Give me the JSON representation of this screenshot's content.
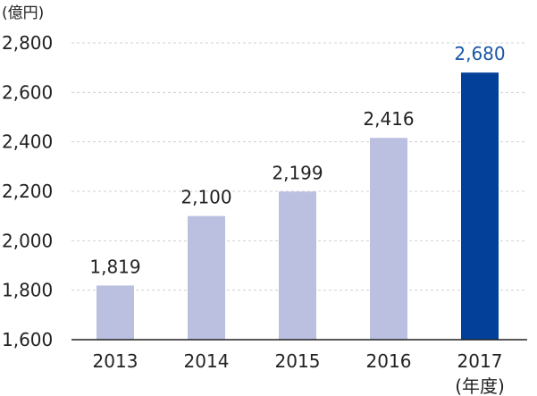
{
  "chart_data": {
    "type": "bar",
    "title": "",
    "unit_label": "(億円)",
    "xlabel": "(年度)",
    "ylabel": "",
    "ylim": [
      1600,
      2800
    ],
    "yticks": [
      1600,
      1800,
      2000,
      2200,
      2400,
      2600,
      2800
    ],
    "ytick_labels": [
      "1,600",
      "1,800",
      "2,000",
      "2,200",
      "2,400",
      "2,600",
      "2,800"
    ],
    "categories": [
      "2013",
      "2014",
      "2015",
      "2016",
      "2017"
    ],
    "values": [
      1819,
      2100,
      2199,
      2416,
      2680
    ],
    "value_labels": [
      "1,819",
      "2,100",
      "2,199",
      "2,416",
      "2,680"
    ],
    "highlight_index": 4,
    "grid": true,
    "colors": {
      "bar": "#bcc0e0",
      "highlight_bar": "#034099",
      "highlight_label": "#1a57a3",
      "grid": "#d0d0d0",
      "axis": "#222222",
      "text": "#222222"
    }
  }
}
